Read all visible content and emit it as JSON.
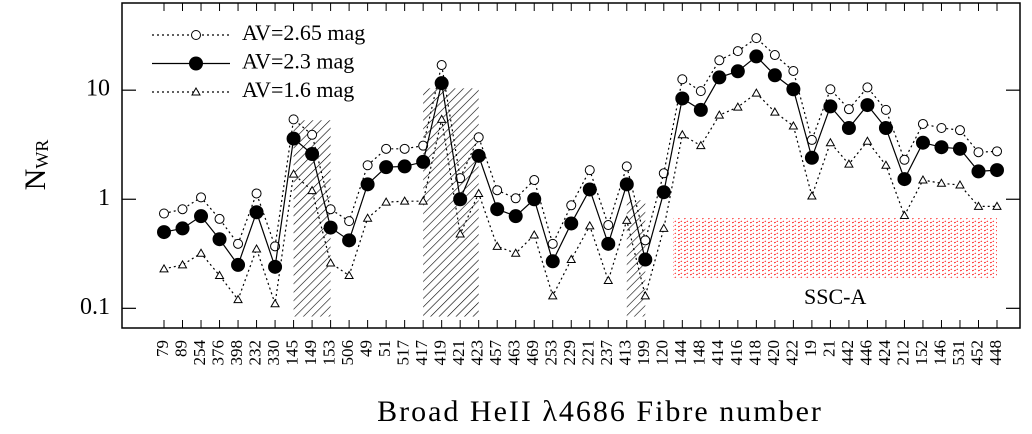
{
  "chart_data": {
    "type": "line",
    "xlabel": "Broad HeII λ4686 Fibre number",
    "ylabel": "N",
    "ylabel_sub": "WR",
    "log_y": true,
    "ylim": [
      0.066,
      63
    ],
    "yticks": [
      0.1,
      1,
      10
    ],
    "legend": "upper left",
    "categories": [
      "79",
      "89",
      "254",
      "376",
      "398",
      "232",
      "330",
      "145",
      "149",
      "153",
      "506",
      "49",
      "51",
      "517",
      "417",
      "419",
      "421",
      "423",
      "457",
      "463",
      "469",
      "253",
      "229",
      "221",
      "237",
      "413",
      "199",
      "120",
      "144",
      "148",
      "414",
      "416",
      "418",
      "420",
      "422",
      "19",
      "21",
      "442",
      "446",
      "424",
      "212",
      "152",
      "146",
      "531",
      "452",
      "448"
    ],
    "series": [
      {
        "name": "AV=2.65 mag",
        "color": "#000000",
        "marker": "open-circle",
        "line": "dotted",
        "values": [
          0.74,
          0.81,
          1.04,
          0.66,
          0.39,
          1.13,
          0.37,
          5.4,
          3.9,
          0.81,
          0.63,
          2.05,
          2.9,
          2.9,
          3.1,
          17,
          1.56,
          3.7,
          1.21,
          1.02,
          1.5,
          0.39,
          0.88,
          1.85,
          0.58,
          2.0,
          0.42,
          1.73,
          12.6,
          9.8,
          18.8,
          22.8,
          30,
          21,
          15,
          3.5,
          10.2,
          6.7,
          10.6,
          6.6,
          2.3,
          4.9,
          4.5,
          4.3,
          2.7,
          2.75
        ]
      },
      {
        "name": "AV=2.3 mag",
        "color": "#000000",
        "marker": "filled-circle",
        "line": "solid",
        "values": [
          0.5,
          0.54,
          0.7,
          0.43,
          0.25,
          0.76,
          0.24,
          3.6,
          2.6,
          0.55,
          0.42,
          1.37,
          1.97,
          2.0,
          2.2,
          11.6,
          1.0,
          2.5,
          0.81,
          0.7,
          1.0,
          0.27,
          0.6,
          1.23,
          0.39,
          1.37,
          0.28,
          1.16,
          8.4,
          6.6,
          13.1,
          14.9,
          20.4,
          13.7,
          10.2,
          2.4,
          7.1,
          4.5,
          7.3,
          4.5,
          1.53,
          3.3,
          3.0,
          2.9,
          1.8,
          1.85
        ]
      },
      {
        "name": "AV=1.6 mag",
        "color": "#000000",
        "marker": "triangle",
        "line": "dotted",
        "values": [
          0.23,
          0.25,
          0.32,
          0.2,
          0.12,
          0.35,
          0.11,
          1.7,
          1.2,
          0.26,
          0.2,
          0.67,
          0.94,
          0.96,
          0.96,
          5.4,
          0.48,
          1.13,
          0.37,
          0.32,
          0.47,
          0.13,
          0.28,
          0.57,
          0.18,
          0.64,
          0.13,
          0.54,
          3.9,
          3.1,
          5.9,
          7.0,
          9.4,
          6.3,
          4.7,
          1.07,
          3.3,
          2.1,
          3.4,
          2.05,
          0.71,
          1.5,
          1.4,
          1.35,
          0.86,
          0.86
        ]
      }
    ],
    "regions": [
      {
        "from": "145",
        "to": "153",
        "ylim": [
          0.084,
          5.3
        ],
        "color": "#000000"
      },
      {
        "from": "417",
        "to": "423",
        "ylim": [
          0.084,
          10.4
        ],
        "color": "#000000"
      },
      {
        "from": "413",
        "to": "199",
        "ylim": [
          0.084,
          0.98
        ],
        "color": "#000000"
      },
      {
        "from": "144",
        "to": "448",
        "ylim": [
          0.19,
          0.67
        ],
        "color": "#ff0000",
        "label": "SSC-A"
      }
    ]
  }
}
